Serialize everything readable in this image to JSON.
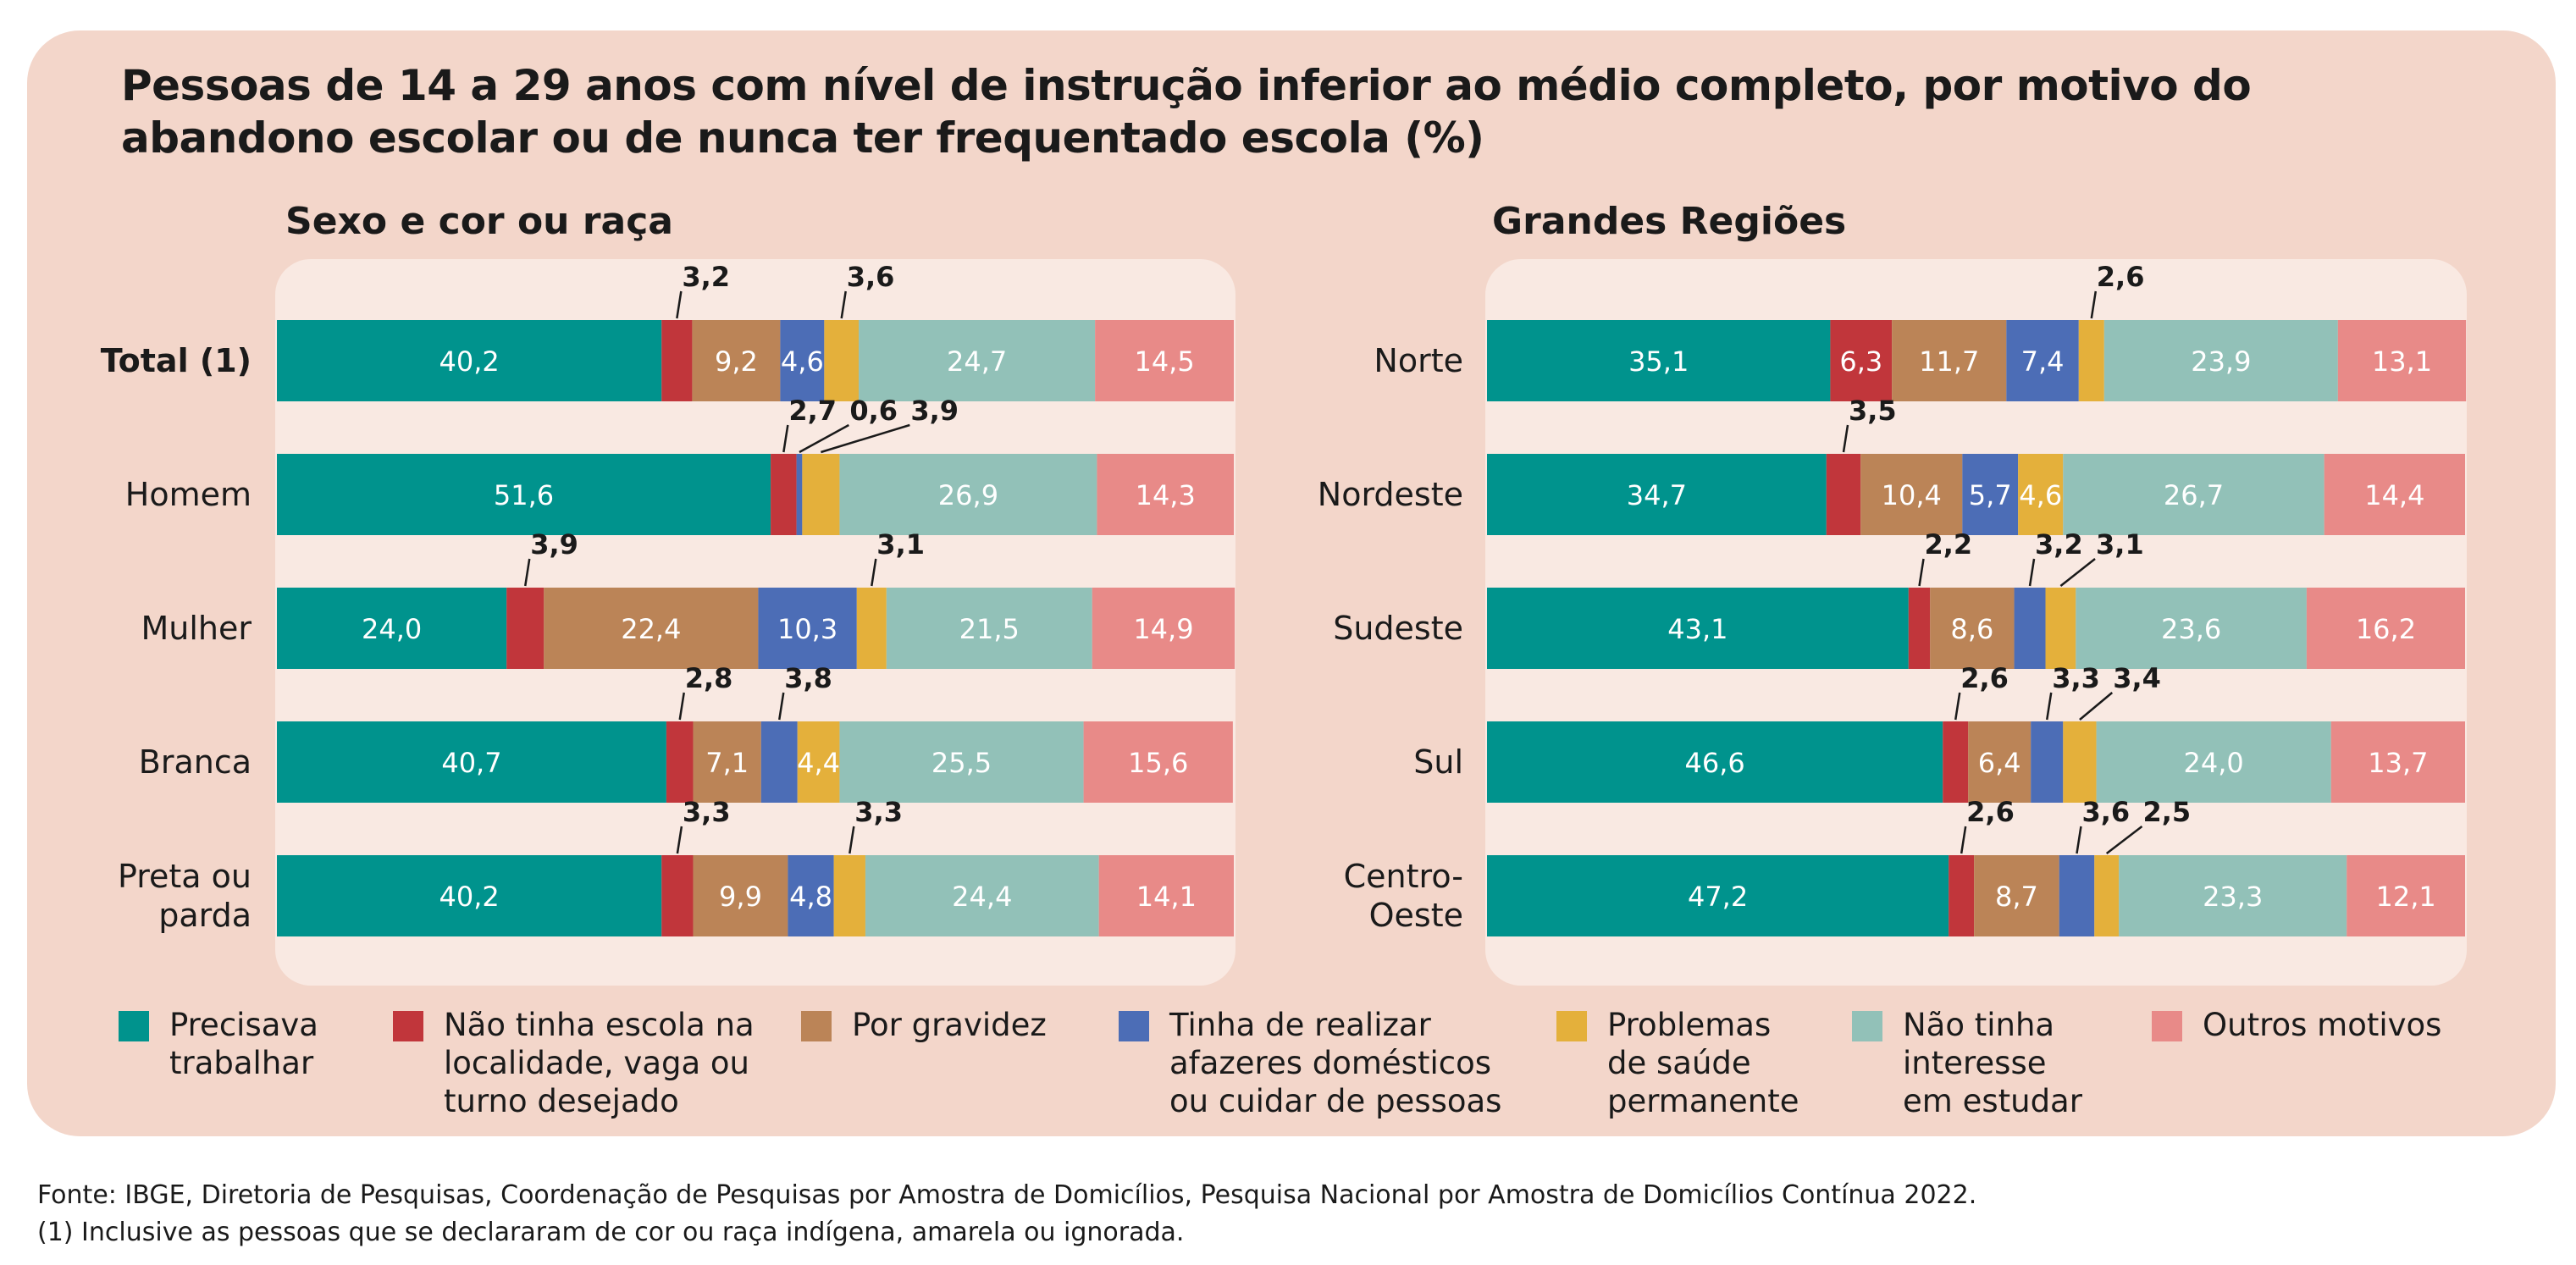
{
  "title": "Pessoas de 14 a 29 anos com nível de instrução inferior ao médio completo, por motivo do abandono escolar ou de nunca ter frequentado escola (%)",
  "colors": [
    "#00938d",
    "#c1363b",
    "#bb8457",
    "#4c6db6",
    "#e4b03b",
    "#92c1b8",
    "#e88a88"
  ],
  "panel_color": "#f3d6ca",
  "plot_bg": "#f9e9e2",
  "legend": [
    {
      "label": "Precisava\ntrabalhar"
    },
    {
      "label": "Não tinha escola na\nlocalidade, vaga ou\nturno desejado"
    },
    {
      "label": "Por gravidez"
    },
    {
      "label": "Tinha de realizar\nafazeres domésticos\nou cuidar de pessoas"
    },
    {
      "label": "Problemas\nde saúde\npermanente"
    },
    {
      "label": "Não tinha\ninteresse\n em estudar"
    },
    {
      "label": "Outros motivos"
    }
  ],
  "chart_data": [
    {
      "type": "bar",
      "stacked": true,
      "orientation": "horizontal",
      "title": "Sexo e cor ou raça",
      "categories": [
        "Total (1)",
        "Homem",
        "Mulher",
        "Branca",
        "Preta ou\nparda"
      ],
      "category_bold": [
        true,
        false,
        false,
        false,
        false
      ],
      "series": [
        {
          "name": "Precisava trabalhar",
          "values": [
            40.2,
            51.6,
            24.0,
            40.7,
            40.2
          ],
          "labels": [
            "40,2",
            "51,6",
            "24,0",
            "40,7",
            "40,2"
          ]
        },
        {
          "name": "Não tinha escola na localidade, vaga ou turno desejado",
          "values": [
            3.2,
            2.7,
            3.9,
            2.8,
            3.3
          ],
          "labels": [
            "3,2",
            "2,7",
            "3,9",
            "2,8",
            "3,3"
          ]
        },
        {
          "name": "Por gravidez",
          "values": [
            9.2,
            0.0,
            22.4,
            7.1,
            9.9
          ],
          "labels": [
            "9,2",
            "",
            "22,4",
            "7,1",
            "9,9"
          ]
        },
        {
          "name": "Tinha de realizar afazeres domésticos ou cuidar de pessoas",
          "values": [
            4.6,
            0.6,
            10.3,
            3.8,
            4.8
          ],
          "labels": [
            "4,6",
            "0,6",
            "10,3",
            "3,8",
            "4,8"
          ]
        },
        {
          "name": "Problemas de saúde permanente",
          "values": [
            3.6,
            3.9,
            3.1,
            4.4,
            3.3
          ],
          "labels": [
            "3,6",
            "3,9",
            "3,1",
            "4,4",
            "3,3"
          ]
        },
        {
          "name": "Não tinha interesse em estudar",
          "values": [
            24.7,
            26.9,
            21.5,
            25.5,
            24.4
          ],
          "labels": [
            "24,7",
            "26,9",
            "21,5",
            "25,5",
            "24,4"
          ]
        },
        {
          "name": "Outros motivos",
          "values": [
            14.5,
            14.3,
            14.9,
            15.6,
            14.1
          ],
          "labels": [
            "14,5",
            "14,3",
            "14,9",
            "15,6",
            "14,1"
          ]
        }
      ],
      "xlim": [
        0,
        100
      ],
      "unit": "%"
    },
    {
      "type": "bar",
      "stacked": true,
      "orientation": "horizontal",
      "title": "Grandes Regiões",
      "categories": [
        "Norte",
        "Nordeste",
        "Sudeste",
        "Sul",
        "Centro-\nOeste"
      ],
      "category_bold": [
        false,
        false,
        false,
        false,
        false
      ],
      "series": [
        {
          "name": "Precisava trabalhar",
          "values": [
            35.1,
            34.7,
            43.1,
            46.6,
            47.2
          ],
          "labels": [
            "35,1",
            "34,7",
            "43,1",
            "46,6",
            "47,2"
          ]
        },
        {
          "name": "Não tinha escola na localidade, vaga ou turno desejado",
          "values": [
            6.3,
            3.5,
            2.2,
            2.6,
            2.6
          ],
          "labels": [
            "6,3",
            "3,5",
            "2,2",
            "2,6",
            "2,6"
          ]
        },
        {
          "name": "Por gravidez",
          "values": [
            11.7,
            10.4,
            8.6,
            6.4,
            8.7
          ],
          "labels": [
            "11,7",
            "10,4",
            "8,6",
            "6,4",
            "8,7"
          ]
        },
        {
          "name": "Tinha de realizar afazeres domésticos ou cuidar de pessoas",
          "values": [
            7.4,
            5.7,
            3.2,
            3.3,
            3.6
          ],
          "labels": [
            "7,4",
            "5,7",
            "3,2",
            "3,3",
            "3,6"
          ]
        },
        {
          "name": "Problemas de saúde permanente",
          "values": [
            2.6,
            4.6,
            3.1,
            3.4,
            2.5
          ],
          "labels": [
            "2,6",
            "4,6",
            "3,1",
            "3,4",
            "2,5"
          ]
        },
        {
          "name": "Não tinha interesse em estudar",
          "values": [
            23.9,
            26.7,
            23.6,
            24.0,
            23.3
          ],
          "labels": [
            "23,9",
            "26,7",
            "23,6",
            "24,0",
            "23,3"
          ]
        },
        {
          "name": "Outros motivos",
          "values": [
            13.1,
            14.4,
            16.2,
            13.7,
            12.1
          ],
          "labels": [
            "13,1",
            "14,4",
            "16,2",
            "13,7",
            "12,1"
          ]
        }
      ],
      "xlim": [
        0,
        100
      ],
      "unit": "%"
    }
  ],
  "footer": {
    "source": "Fonte: IBGE, Diretoria de Pesquisas, Coordenação de Pesquisas por Amostra de Domicílios, Pesquisa Nacional por Amostra de Domicílios Contínua 2022.",
    "note": "(1) Inclusive as pessoas que se declararam de cor ou raça indígena, amarela ou ignorada."
  }
}
